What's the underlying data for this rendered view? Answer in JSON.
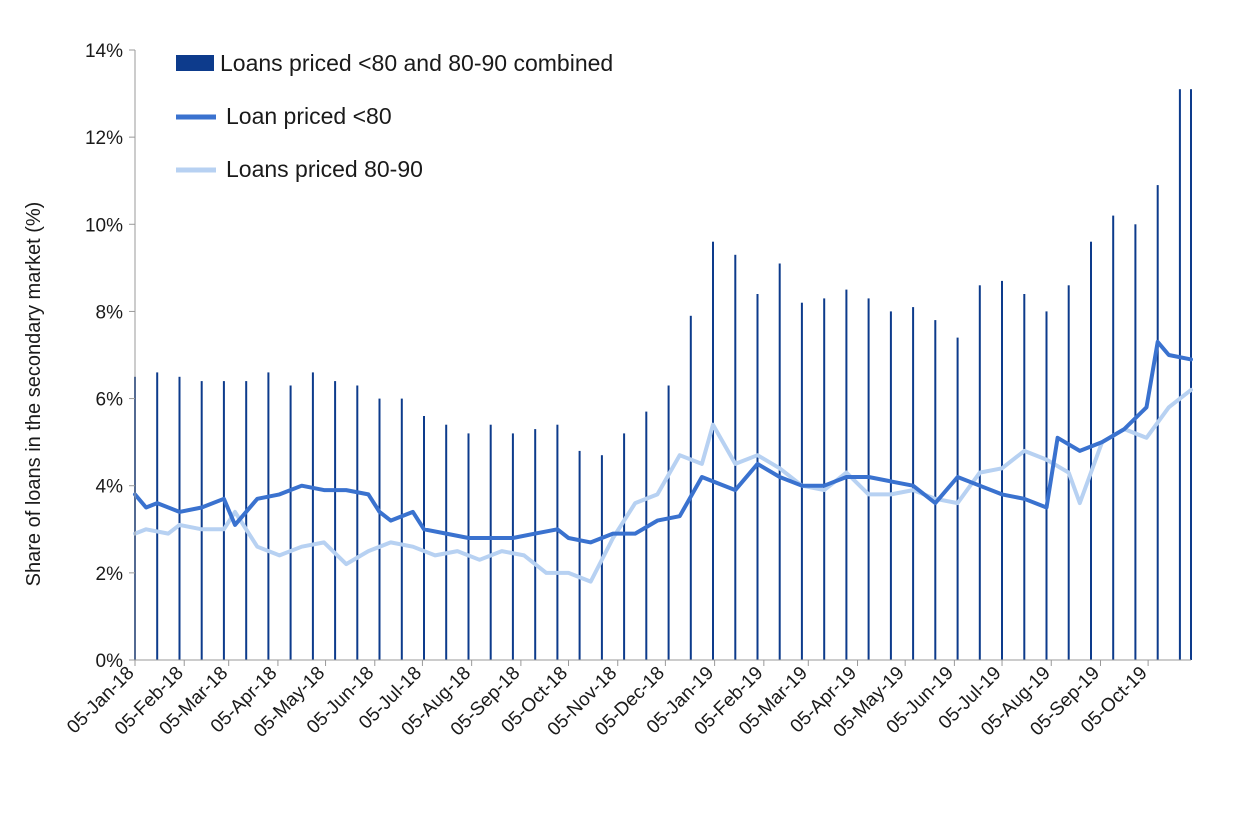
{
  "chart_data": {
    "type": "bar+line",
    "ylabel": "Share of loans in the secondary market  (%)",
    "ylim": [
      0,
      14
    ],
    "yticks": [
      "0%",
      "2%",
      "4%",
      "6%",
      "8%",
      "10%",
      "12%",
      "14%"
    ],
    "x_start": "2018-01-05",
    "x_end": "2019-11-01",
    "x_tick_labels": [
      "05-Jan-18",
      "05-Feb-18",
      "05-Mar-18",
      "05-Apr-18",
      "05-May-18",
      "05-Jun-18",
      "05-Jul-18",
      "05-Aug-18",
      "05-Sep-18",
      "05-Oct-18",
      "05-Nov-18",
      "05-Dec-18",
      "05-Jan-19",
      "05-Feb-19",
      "05-Mar-19",
      "05-Apr-19",
      "05-May-19",
      "05-Jun-19",
      "05-Jul-19",
      "05-Aug-19",
      "05-Sep-19",
      "05-Oct-19"
    ],
    "grid": false,
    "legend_position": "top-left",
    "legend": [
      "Loans priced <80 and 80-90 combined",
      "Loan priced <80",
      "Loans priced 80-90"
    ],
    "colors": {
      "combined": "#0d3b8c",
      "below80": "#3a72cf",
      "between80_90": "#b7d1f2"
    },
    "series": [
      {
        "name": "Loans priced <80 and 80-90 combined",
        "type": "bar",
        "x": [
          "2018-01-05",
          "2018-01-19",
          "2018-02-02",
          "2018-02-16",
          "2018-03-02",
          "2018-03-16",
          "2018-03-30",
          "2018-04-13",
          "2018-04-27",
          "2018-05-11",
          "2018-05-25",
          "2018-06-08",
          "2018-06-22",
          "2018-07-06",
          "2018-07-20",
          "2018-08-03",
          "2018-08-17",
          "2018-08-31",
          "2018-09-14",
          "2018-09-28",
          "2018-10-12",
          "2018-10-26",
          "2018-11-09",
          "2018-11-23",
          "2018-12-07",
          "2018-12-21",
          "2019-01-04",
          "2019-01-18",
          "2019-02-01",
          "2019-02-15",
          "2019-03-01",
          "2019-03-15",
          "2019-03-29",
          "2019-04-12",
          "2019-04-26",
          "2019-05-10",
          "2019-05-24",
          "2019-06-07",
          "2019-06-21",
          "2019-07-05",
          "2019-07-19",
          "2019-08-02",
          "2019-08-16",
          "2019-08-30",
          "2019-09-13",
          "2019-09-27",
          "2019-10-11",
          "2019-10-25",
          "2019-11-01"
        ],
        "values": [
          6.5,
          6.6,
          6.5,
          6.4,
          6.4,
          6.4,
          6.6,
          6.3,
          6.6,
          6.4,
          6.3,
          6.0,
          6.0,
          5.6,
          5.4,
          5.2,
          5.4,
          5.2,
          5.3,
          5.4,
          4.8,
          4.7,
          5.2,
          5.7,
          6.3,
          7.9,
          9.6,
          9.3,
          8.4,
          9.1,
          8.2,
          8.3,
          8.5,
          8.3,
          8.0,
          8.1,
          7.8,
          7.4,
          8.6,
          8.7,
          8.4,
          8.0,
          8.6,
          9.6,
          10.2,
          10.0,
          10.9,
          13.1,
          13.1
        ]
      },
      {
        "name": "Loan priced <80",
        "type": "line",
        "x": [
          "2018-01-05",
          "2018-01-12",
          "2018-01-19",
          "2018-02-02",
          "2018-02-16",
          "2018-03-02",
          "2018-03-09",
          "2018-03-23",
          "2018-04-06",
          "2018-04-20",
          "2018-05-04",
          "2018-05-18",
          "2018-06-01",
          "2018-06-08",
          "2018-06-15",
          "2018-06-29",
          "2018-07-06",
          "2018-07-20",
          "2018-08-03",
          "2018-08-17",
          "2018-08-31",
          "2018-09-14",
          "2018-09-28",
          "2018-10-05",
          "2018-10-19",
          "2018-11-02",
          "2018-11-16",
          "2018-11-30",
          "2018-12-14",
          "2018-12-28",
          "2019-01-04",
          "2019-01-18",
          "2019-02-01",
          "2019-02-15",
          "2019-03-01",
          "2019-03-15",
          "2019-03-29",
          "2019-04-12",
          "2019-04-26",
          "2019-05-10",
          "2019-05-24",
          "2019-06-07",
          "2019-06-21",
          "2019-07-05",
          "2019-07-19",
          "2019-08-02",
          "2019-08-09",
          "2019-08-23",
          "2019-09-06",
          "2019-09-20",
          "2019-10-04",
          "2019-10-11",
          "2019-10-18",
          "2019-11-01"
        ],
        "values": [
          3.8,
          3.5,
          3.6,
          3.4,
          3.5,
          3.7,
          3.1,
          3.7,
          3.8,
          4.0,
          3.9,
          3.9,
          3.8,
          3.4,
          3.2,
          3.4,
          3.0,
          2.9,
          2.8,
          2.8,
          2.8,
          2.9,
          3.0,
          2.8,
          2.7,
          2.9,
          2.9,
          3.2,
          3.3,
          4.2,
          4.1,
          3.9,
          4.5,
          4.2,
          4.0,
          4.0,
          4.2,
          4.2,
          4.1,
          4.0,
          3.6,
          4.2,
          4.0,
          3.8,
          3.7,
          3.5,
          5.1,
          4.8,
          5.0,
          5.3,
          5.8,
          7.3,
          7.0,
          6.9
        ]
      },
      {
        "name": "Loans priced 80-90",
        "type": "line",
        "x": [
          "2018-01-05",
          "2018-01-12",
          "2018-01-26",
          "2018-02-02",
          "2018-02-16",
          "2018-03-02",
          "2018-03-09",
          "2018-03-23",
          "2018-04-06",
          "2018-04-20",
          "2018-05-04",
          "2018-05-18",
          "2018-06-01",
          "2018-06-15",
          "2018-06-29",
          "2018-07-13",
          "2018-07-27",
          "2018-08-10",
          "2018-08-24",
          "2018-09-07",
          "2018-09-21",
          "2018-10-05",
          "2018-10-19",
          "2018-11-02",
          "2018-11-16",
          "2018-11-30",
          "2018-12-14",
          "2018-12-28",
          "2019-01-04",
          "2019-01-18",
          "2019-02-01",
          "2019-02-15",
          "2019-03-01",
          "2019-03-15",
          "2019-03-29",
          "2019-04-12",
          "2019-04-26",
          "2019-05-10",
          "2019-05-24",
          "2019-06-07",
          "2019-06-21",
          "2019-07-05",
          "2019-07-19",
          "2019-08-02",
          "2019-08-16",
          "2019-08-23",
          "2019-09-06",
          "2019-09-20",
          "2019-10-04",
          "2019-10-18",
          "2019-11-01"
        ],
        "values": [
          2.9,
          3.0,
          2.9,
          3.1,
          3.0,
          3.0,
          3.4,
          2.6,
          2.4,
          2.6,
          2.7,
          2.2,
          2.5,
          2.7,
          2.6,
          2.4,
          2.5,
          2.3,
          2.5,
          2.4,
          2.0,
          2.0,
          1.8,
          2.8,
          3.6,
          3.8,
          4.7,
          4.5,
          5.4,
          4.5,
          4.7,
          4.4,
          4.0,
          3.9,
          4.3,
          3.8,
          3.8,
          3.9,
          3.7,
          3.6,
          4.3,
          4.4,
          4.8,
          4.6,
          4.3,
          3.6,
          5.0,
          5.3,
          5.1,
          5.8,
          6.2
        ]
      }
    ]
  }
}
